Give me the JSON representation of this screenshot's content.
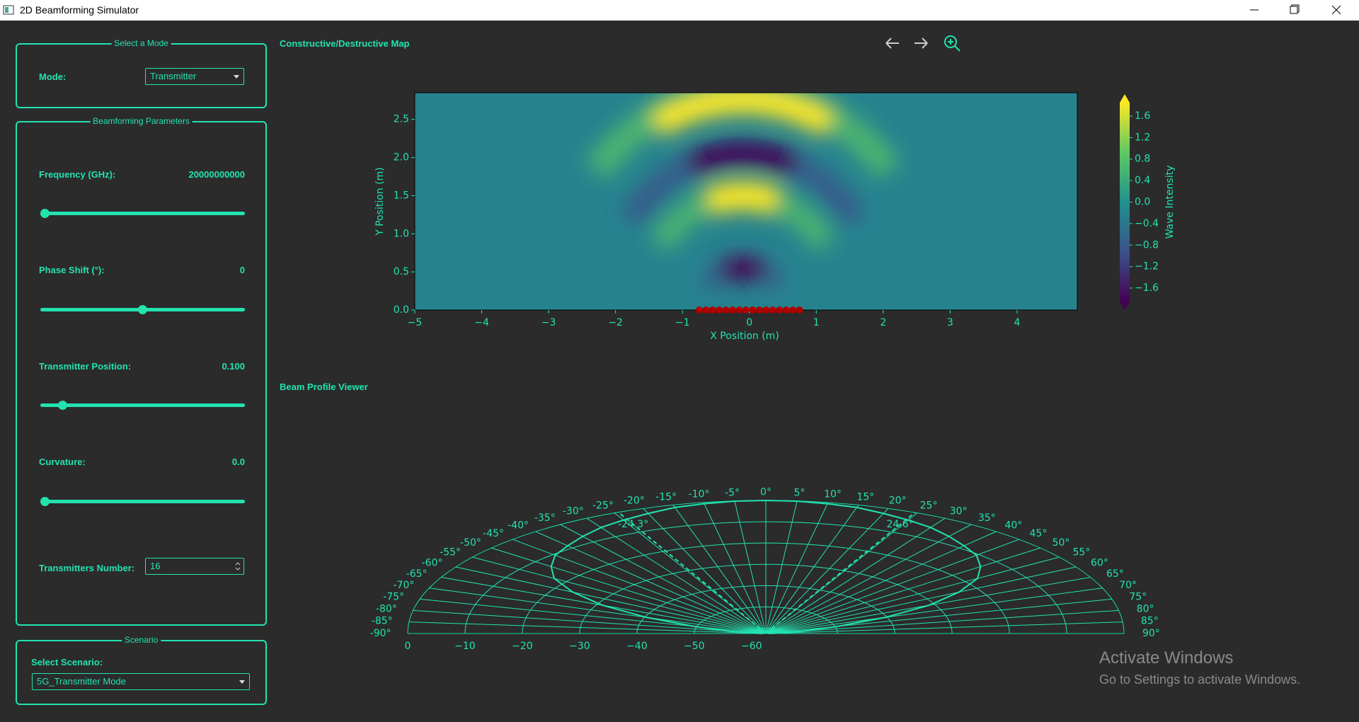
{
  "window": {
    "title": "2D Beamforming Simulator"
  },
  "mode_panel": {
    "title": "Select a Mode",
    "label": "Mode:",
    "value": "Transmitter"
  },
  "parameters_panel": {
    "title": "Beamforming Parameters",
    "rows": [
      {
        "label": "Frequency (GHz):",
        "value": "20000000000"
      },
      {
        "label": "Phase Shift (°):",
        "value": "0"
      },
      {
        "label": "Transmitter Position:",
        "value": "0.100"
      },
      {
        "label": "Curvature:",
        "value": "0.0"
      }
    ],
    "transmitters_label": "Transmitters Number:",
    "transmitters_value": "16"
  },
  "scenario_panel": {
    "title": "Scenario",
    "label": "Select Scenario:",
    "value": "5G_Transmitter Mode"
  },
  "map_section": {
    "title": "Constructive/Destructive Map"
  },
  "beam_section": {
    "title": "Beam Profile Viewer"
  },
  "watermark": {
    "title": "Activate Windows",
    "subtitle": "Go to Settings to activate Windows."
  },
  "chart_data": [
    {
      "type": "heatmap",
      "xlabel": "X Position (m)",
      "ylabel": "Y Position (m)",
      "xlim": [
        -5,
        4.9
      ],
      "xticks": [
        {
          "value": -5,
          "label": "−5"
        },
        {
          "value": -4,
          "label": "−4"
        },
        {
          "value": -3,
          "label": "−3"
        },
        {
          "value": -2,
          "label": "−2"
        },
        {
          "value": -1,
          "label": "−1"
        },
        0,
        1,
        2,
        3,
        4
      ],
      "ylim": [
        0,
        2.85
      ],
      "yticks": [
        {
          "value": 0,
          "label": "0.0"
        },
        0.5,
        {
          "value": 1,
          "label": "1.0"
        },
        1.5,
        {
          "value": 2,
          "label": "2.0"
        },
        2.5
      ],
      "colorbar": {
        "label": "Wave Intensity",
        "lim": [
          -1.85,
          1.85
        ],
        "ticks": [
          1.6,
          1.2,
          0.8,
          0.4,
          {
            "value": 0,
            "label": "0.0"
          },
          {
            "value": -0.4,
            "label": "−0.4"
          },
          {
            "value": -0.8,
            "label": "−0.8"
          },
          {
            "value": -1.2,
            "label": "−1.2"
          },
          {
            "value": -1.6,
            "label": "−1.6"
          }
        ]
      },
      "transmitters": {
        "color": "#b00000",
        "x": [
          -0.75,
          -0.65,
          -0.55,
          -0.45,
          -0.35,
          -0.25,
          -0.15,
          -0.05,
          0.05,
          0.15,
          0.25,
          0.35,
          0.45,
          0.55,
          0.65,
          0.75
        ],
        "y": [
          0,
          0,
          0,
          0,
          0,
          0,
          0,
          0,
          0,
          0,
          0,
          0,
          0,
          0,
          0,
          0
        ]
      }
    },
    {
      "type": "polar",
      "theta_lim": [
        -90,
        90
      ],
      "theta_ticks": [
        {
          "value": -90,
          "label": "-90°"
        },
        {
          "value": -85,
          "label": "-85°"
        },
        {
          "value": -80,
          "label": "-80°"
        },
        {
          "value": -75,
          "label": "-75°"
        },
        {
          "value": -70,
          "label": "-70°"
        },
        {
          "value": -65,
          "label": "-65°"
        },
        {
          "value": -60,
          "label": "-60°"
        },
        {
          "value": -55,
          "label": "-55°"
        },
        {
          "value": -50,
          "label": "-50°"
        },
        {
          "value": -45,
          "label": "-45°"
        },
        {
          "value": -40,
          "label": "-40°"
        },
        {
          "value": -35,
          "label": "-35°"
        },
        {
          "value": -30,
          "label": "-30°"
        },
        {
          "value": -25,
          "label": "-25°"
        },
        {
          "value": -20,
          "label": "-20°"
        },
        {
          "value": -15,
          "label": "-15°"
        },
        {
          "value": -10,
          "label": "-10°"
        },
        {
          "value": -5,
          "label": "-5°"
        },
        {
          "value": 0,
          "label": "0°"
        },
        {
          "value": 5,
          "label": "5°"
        },
        {
          "value": 10,
          "label": "10°"
        },
        {
          "value": 15,
          "label": "15°"
        },
        {
          "value": 20,
          "label": "20°"
        },
        {
          "value": 25,
          "label": "25°"
        },
        {
          "value": 30,
          "label": "30°"
        },
        {
          "value": 35,
          "label": "35°"
        },
        {
          "value": 40,
          "label": "40°"
        },
        {
          "value": 45,
          "label": "45°"
        },
        {
          "value": 50,
          "label": "50°"
        },
        {
          "value": 55,
          "label": "55°"
        },
        {
          "value": 60,
          "label": "60°"
        },
        {
          "value": 65,
          "label": "65°"
        },
        {
          "value": 70,
          "label": "70°"
        },
        {
          "value": 75,
          "label": "75°"
        },
        {
          "value": 80,
          "label": "80°"
        },
        {
          "value": 85,
          "label": "85°"
        },
        {
          "value": 90,
          "label": "90°"
        }
      ],
      "rlim": [
        -62.5,
        0
      ],
      "rticks": [
        0,
        {
          "value": -10,
          "label": "−10"
        },
        {
          "value": -20,
          "label": "−20"
        },
        {
          "value": -30,
          "label": "−30"
        },
        {
          "value": -40,
          "label": "−40"
        },
        {
          "value": -50,
          "label": "−50"
        },
        {
          "value": -60,
          "label": "−60"
        }
      ],
      "series": [
        {
          "color": "#22e3b0",
          "theta": [
            -90,
            -85,
            -80,
            -75,
            -70,
            -65,
            -60,
            -55,
            -50,
            -45,
            -40,
            -35,
            -30,
            -25,
            -20,
            -15,
            -10,
            -5,
            0,
            5,
            10,
            15,
            20,
            25,
            30,
            35,
            40,
            45,
            50,
            55,
            60,
            65,
            70,
            75,
            80,
            85,
            90
          ],
          "values": [
            -62,
            -60.1,
            -55.8,
            -49.6,
            -40.3,
            -31,
            -23.6,
            -17.4,
            -13.6,
            -10.5,
            -8.7,
            -6.8,
            -5,
            -3.7,
            -2.5,
            -1.2,
            -0.6,
            -0.1,
            0,
            -0.1,
            -0.6,
            -1.2,
            -2.5,
            -3.7,
            -5,
            -6.8,
            -8.7,
            -10.5,
            -13.6,
            -17.4,
            -23.6,
            -31,
            -40.3,
            -49.6,
            -55.8,
            -60.1,
            -62
          ]
        }
      ],
      "markers": [
        {
          "value": -24.3,
          "label": "-24.3°"
        },
        {
          "value": 24.6,
          "label": "24.6°"
        }
      ]
    }
  ]
}
